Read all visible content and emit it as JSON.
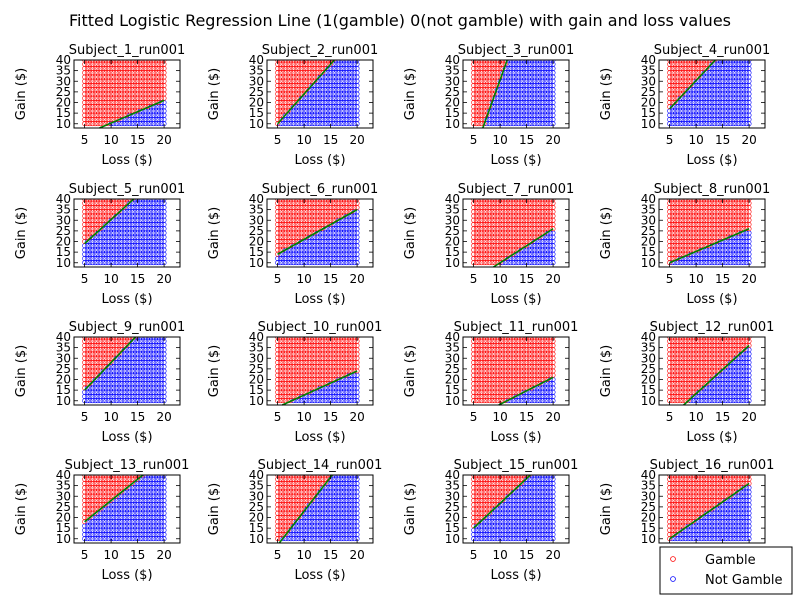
{
  "figure": {
    "title": "Fitted Logistic Regression Line (1(gamble) 0(not gamble) with gain and loss values"
  },
  "legend": {
    "placement": "lower-right",
    "entries": [
      {
        "label": "Gamble",
        "color": "#ff0000"
      },
      {
        "label": "Not Gamble",
        "color": "#0000ff"
      }
    ]
  },
  "chart_data": {
    "type": "scatter",
    "xlabel": "Loss ($)",
    "ylabel": "Gain ($)",
    "xlim": [
      3,
      23
    ],
    "ylim": [
      8,
      40
    ],
    "xticks": [
      5,
      10,
      15,
      20
    ],
    "yticks": [
      10,
      15,
      20,
      25,
      30,
      35,
      40
    ],
    "grid": false,
    "line_color": "#008000",
    "loss_values": [
      5,
      5.5,
      6,
      6.5,
      7,
      7.5,
      8,
      8.5,
      9,
      9.5,
      10,
      10.5,
      11,
      11.5,
      12,
      12.5,
      13,
      13.5,
      14,
      14.5,
      15,
      15.5,
      16,
      16.5,
      17,
      17.5,
      18,
      18.5,
      19,
      19.5,
      20
    ],
    "gain_values": [
      10,
      12,
      14,
      16,
      18,
      20,
      22,
      24,
      26,
      28,
      30,
      32,
      34,
      36,
      38,
      40
    ],
    "subplots": [
      {
        "title": "Subject_1_run001",
        "fit": {
          "x": [
            5,
            20
          ],
          "y": [
            5,
            21
          ]
        }
      },
      {
        "title": "Subject_2_run001",
        "fit": {
          "x": [
            5,
            20
          ],
          "y": [
            10,
            52
          ]
        }
      },
      {
        "title": "Subject_3_run001",
        "fit": {
          "x": [
            5,
            20
          ],
          "y": [
            -4,
            100
          ]
        }
      },
      {
        "title": "Subject_4_run001",
        "fit": {
          "x": [
            5,
            20
          ],
          "y": [
            17,
            57
          ]
        }
      },
      {
        "title": "Subject_5_run001",
        "fit": {
          "x": [
            5,
            20
          ],
          "y": [
            19,
            53
          ]
        }
      },
      {
        "title": "Subject_6_run001",
        "fit": {
          "x": [
            5,
            20
          ],
          "y": [
            14,
            35
          ]
        }
      },
      {
        "title": "Subject_7_run001",
        "fit": {
          "x": [
            5,
            20
          ],
          "y": [
            2,
            26
          ]
        }
      },
      {
        "title": "Subject_8_run001",
        "fit": {
          "x": [
            5,
            20
          ],
          "y": [
            10,
            26
          ]
        }
      },
      {
        "title": "Subject_9_run001",
        "fit": {
          "x": [
            5,
            20
          ],
          "y": [
            15,
            54
          ]
        }
      },
      {
        "title": "Subject_10_run001",
        "fit": {
          "x": [
            5,
            20
          ],
          "y": [
            7,
            24
          ]
        }
      },
      {
        "title": "Subject_11_run001",
        "fit": {
          "x": [
            5,
            20
          ],
          "y": [
            2,
            21
          ]
        }
      },
      {
        "title": "Subject_12_run001",
        "fit": {
          "x": [
            5,
            20
          ],
          "y": [
            2,
            36
          ]
        }
      },
      {
        "title": "Subject_13_run001",
        "fit": {
          "x": [
            5,
            20
          ],
          "y": [
            18,
            48
          ]
        }
      },
      {
        "title": "Subject_14_run001",
        "fit": {
          "x": [
            5,
            20
          ],
          "y": [
            7,
            55
          ]
        }
      },
      {
        "title": "Subject_15_run001",
        "fit": {
          "x": [
            5,
            20
          ],
          "y": [
            15,
            50
          ]
        }
      },
      {
        "title": "Subject_16_run001",
        "fit": {
          "x": [
            5,
            20
          ],
          "y": [
            10,
            36
          ]
        }
      }
    ]
  }
}
